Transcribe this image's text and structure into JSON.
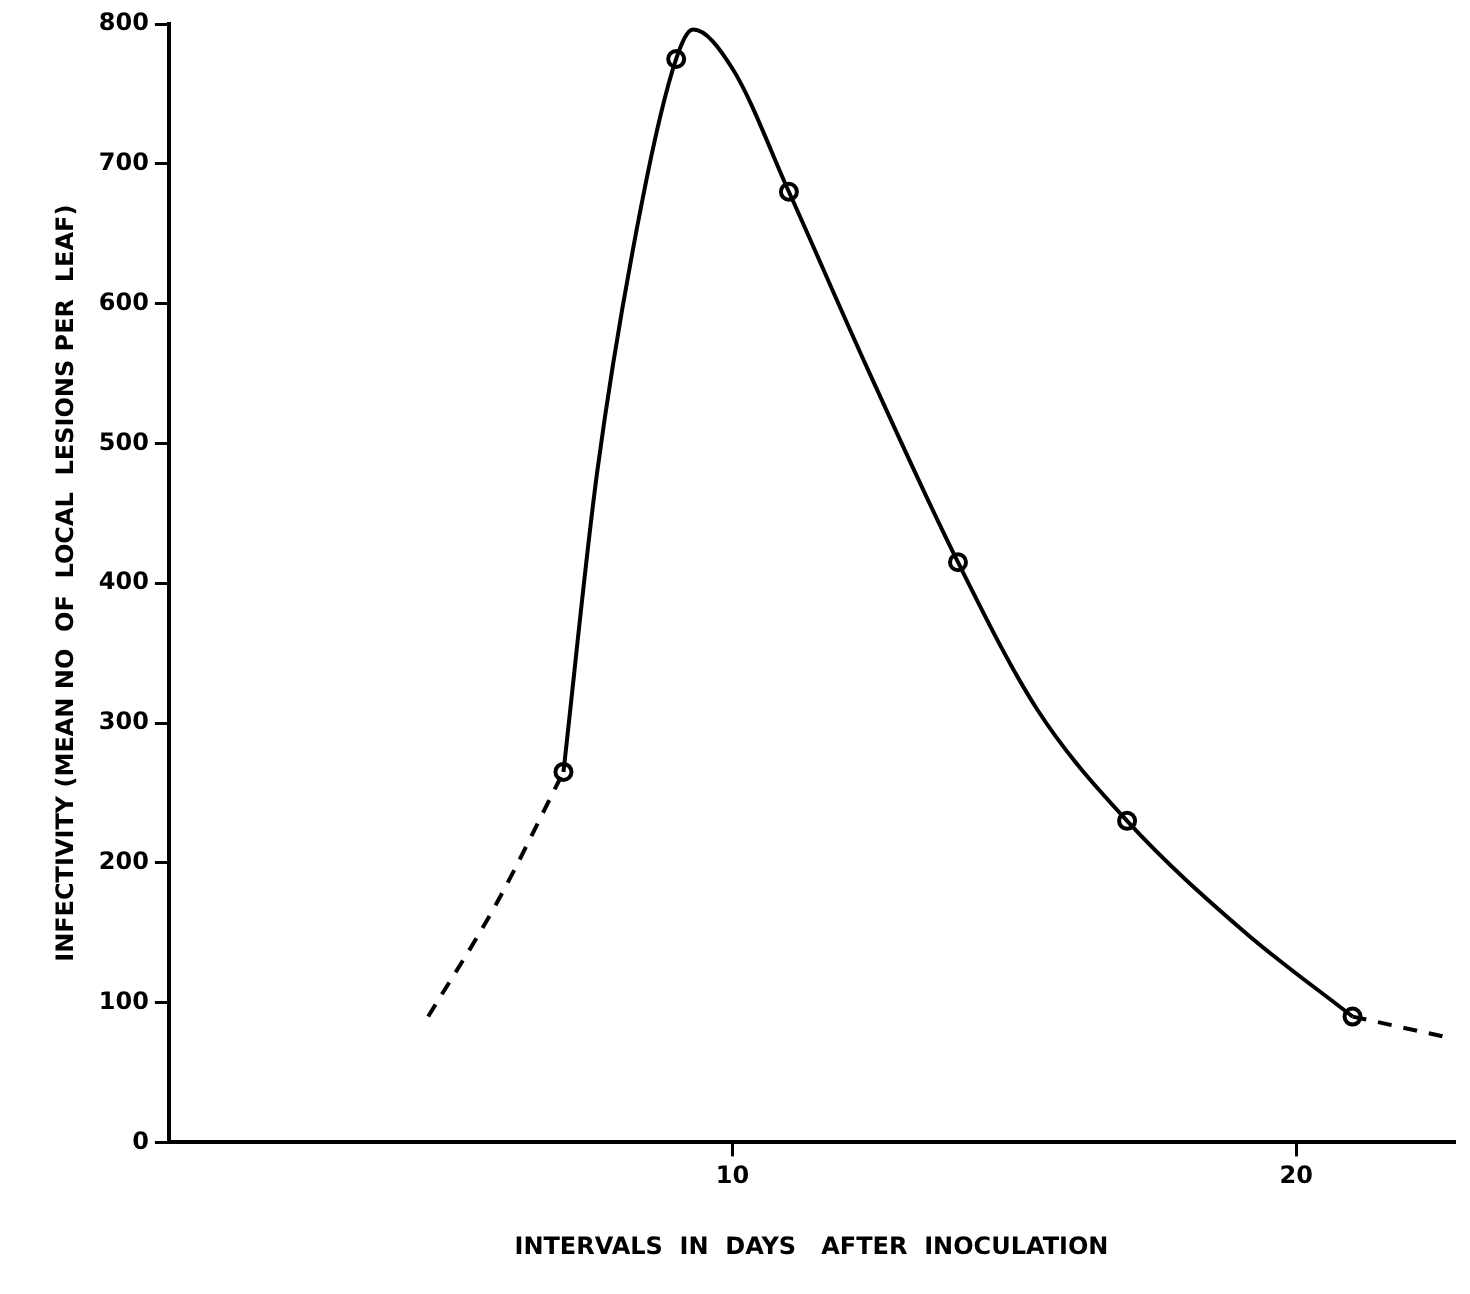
{
  "chart_data": {
    "type": "line",
    "xlabel": "INTERVALS  IN  DAYS   AFTER  INOCULATION",
    "ylabel": "INFECTIVITY (MEAN NO  OF  LOCAL  LESIONS PER  LEAF)",
    "xlim": [
      0,
      22.8
    ],
    "xticks": [
      10,
      20
    ],
    "ylim": [
      0,
      800
    ],
    "yticks": [
      0,
      100,
      200,
      300,
      400,
      500,
      600,
      700,
      800
    ],
    "grid": false,
    "legend": false,
    "series": [
      {
        "color": "#000000",
        "line_style": "solid",
        "marker": "none",
        "x": [
          7,
          7.6,
          8.4,
          9,
          9.3,
          10,
          11,
          12.4,
          14,
          15.4,
          17,
          19.1,
          21
        ],
        "values": [
          265,
          480,
          674,
          775,
          796,
          768,
          680,
          553,
          415,
          310,
          230,
          150,
          90
        ]
      },
      {
        "type": "line",
        "color": "#000000",
        "line_style": "dashed",
        "marker": "none",
        "x": [
          4.6,
          5.8,
          7
        ],
        "values": [
          90,
          170,
          265
        ]
      },
      {
        "type": "line",
        "color": "#000000",
        "line_style": "dashed",
        "marker": "none",
        "x": [
          21,
          22.7
        ],
        "values": [
          90,
          75
        ]
      },
      {
        "type": "scatter",
        "color": "#000000",
        "marker": "circle",
        "x": [
          7,
          9,
          11,
          14,
          17,
          21
        ],
        "values": [
          265,
          775,
          680,
          415,
          230,
          90
        ]
      }
    ]
  }
}
